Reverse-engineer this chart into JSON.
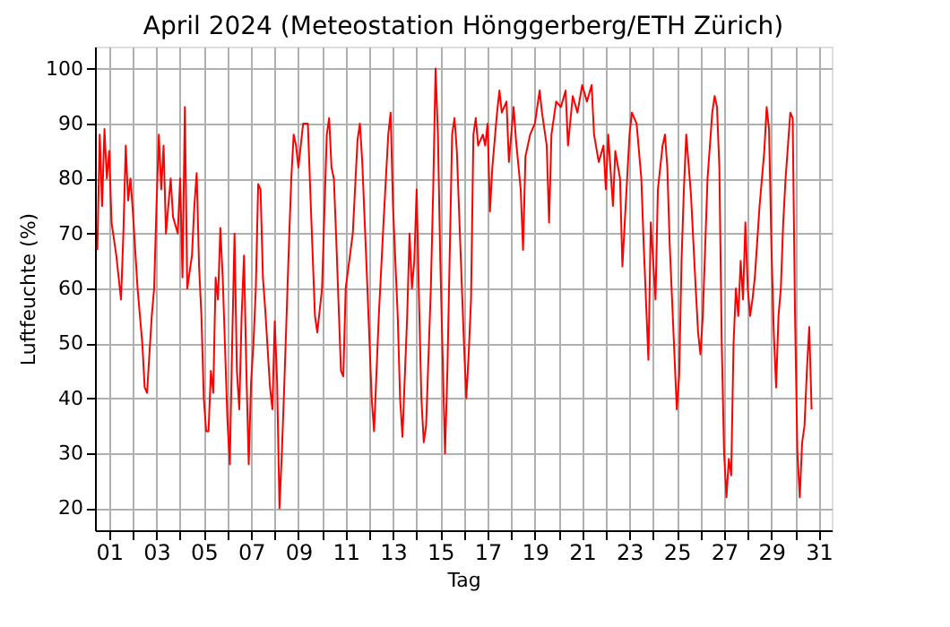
{
  "chart_data": {
    "type": "line",
    "title": "April 2024  (Meteostation Hönggerberg/ETH Zürich)",
    "xlabel": "Tag",
    "ylabel": "Luftfeuchte (%)",
    "xlim": [
      0.4,
      31.55
    ],
    "ylim": [
      16,
      104
    ],
    "xticks": [
      {
        "value": 1,
        "label": "01"
      },
      {
        "value": 2,
        "label": null
      },
      {
        "value": 3,
        "label": "03"
      },
      {
        "value": 4,
        "label": null
      },
      {
        "value": 5,
        "label": "05"
      },
      {
        "value": 6,
        "label": null
      },
      {
        "value": 7,
        "label": "07"
      },
      {
        "value": 8,
        "label": null
      },
      {
        "value": 9,
        "label": "09"
      },
      {
        "value": 10,
        "label": null
      },
      {
        "value": 11,
        "label": "11"
      },
      {
        "value": 12,
        "label": null
      },
      {
        "value": 13,
        "label": "13"
      },
      {
        "value": 14,
        "label": null
      },
      {
        "value": 15,
        "label": "15"
      },
      {
        "value": 16,
        "label": null
      },
      {
        "value": 17,
        "label": "17"
      },
      {
        "value": 18,
        "label": null
      },
      {
        "value": 19,
        "label": "19"
      },
      {
        "value": 20,
        "label": null
      },
      {
        "value": 21,
        "label": "21"
      },
      {
        "value": 22,
        "label": null
      },
      {
        "value": 23,
        "label": "23"
      },
      {
        "value": 24,
        "label": null
      },
      {
        "value": 25,
        "label": "25"
      },
      {
        "value": 26,
        "label": null
      },
      {
        "value": 27,
        "label": "27"
      },
      {
        "value": 28,
        "label": null
      },
      {
        "value": 29,
        "label": "29"
      },
      {
        "value": 30,
        "label": null
      },
      {
        "value": 31,
        "label": "31"
      }
    ],
    "yticks": [
      20,
      30,
      40,
      50,
      60,
      70,
      80,
      90,
      100
    ],
    "grid": true,
    "line_style": "solid",
    "marker": "none",
    "series": [
      {
        "color": "#ff0000",
        "x": [
          0.5,
          0.6,
          0.7,
          0.8,
          0.9,
          1.0,
          1.1,
          1.3,
          1.5,
          1.6,
          1.7,
          1.8,
          1.9,
          2.0,
          2.2,
          2.4,
          2.5,
          2.6,
          2.8,
          2.9,
          3.0,
          3.1,
          3.2,
          3.3,
          3.4,
          3.5,
          3.6,
          3.7,
          3.9,
          4.0,
          4.1,
          4.2,
          4.3,
          4.5,
          4.6,
          4.7,
          4.8,
          4.9,
          5.0,
          5.1,
          5.2,
          5.3,
          5.4,
          5.5,
          5.6,
          5.7,
          5.8,
          6.0,
          6.1,
          6.2,
          6.3,
          6.4,
          6.5,
          6.6,
          6.7,
          6.8,
          6.9,
          7.0,
          7.1,
          7.2,
          7.3,
          7.4,
          7.5,
          7.6,
          7.8,
          7.9,
          8.0,
          8.1,
          8.2,
          8.3,
          8.4,
          8.6,
          8.7,
          8.8,
          8.9,
          9.0,
          9.2,
          9.4,
          9.5,
          9.7,
          9.8,
          10.0,
          10.2,
          10.3,
          10.4,
          10.5,
          10.6,
          10.8,
          10.9,
          11.0,
          11.3,
          11.5,
          11.6,
          11.7,
          11.9,
          12.1,
          12.2,
          12.4,
          12.6,
          12.8,
          12.9,
          13.0,
          13.2,
          13.3,
          13.4,
          13.6,
          13.7,
          13.8,
          13.9,
          14.0,
          14.1,
          14.2,
          14.3,
          14.4,
          14.6,
          14.7,
          14.8,
          14.9,
          15.0,
          15.2,
          15.3,
          15.5,
          15.6,
          15.7,
          16.0,
          16.1,
          16.2,
          16.3,
          16.4,
          16.5,
          16.6,
          16.8,
          16.9,
          17.0,
          17.1,
          17.2,
          17.4,
          17.5,
          17.6,
          17.8,
          17.9,
          18.0,
          18.1,
          18.2,
          18.4,
          18.5,
          18.6,
          18.8,
          19.0,
          19.2,
          19.3,
          19.5,
          19.6,
          19.7,
          19.9,
          20.1,
          20.3,
          20.4,
          20.6,
          20.8,
          21.0,
          21.2,
          21.4,
          21.5,
          21.7,
          21.9,
          22.0,
          22.1,
          22.3,
          22.4,
          22.6,
          22.7,
          22.9,
          23.0,
          23.1,
          23.3,
          23.5,
          23.6,
          23.8,
          23.9,
          24.1,
          24.2,
          24.4,
          24.5,
          24.6,
          24.7,
          24.9,
          25.0,
          25.1,
          25.2,
          25.3,
          25.4,
          25.6,
          25.8,
          25.9,
          26.0,
          26.1,
          26.3,
          26.5,
          26.6,
          26.7,
          26.8,
          26.9,
          27.0,
          27.1,
          27.2,
          27.3,
          27.4,
          27.5,
          27.6,
          27.7,
          27.8,
          27.9,
          28.0,
          28.1,
          28.2,
          28.3,
          28.5,
          28.7,
          28.8,
          28.9,
          29.0,
          29.1,
          29.2,
          29.3,
          29.4,
          29.5,
          29.6,
          29.8,
          29.9,
          30.0,
          30.1,
          30.2,
          30.3,
          30.4,
          30.5,
          30.6,
          30.7
        ],
        "values": [
          67,
          88,
          75,
          89,
          80,
          85,
          72,
          66,
          58,
          70,
          86,
          76,
          80,
          74,
          60,
          50,
          42,
          41,
          55,
          60,
          75,
          88,
          78,
          86,
          70,
          75,
          80,
          73,
          70,
          80,
          62,
          93,
          60,
          66,
          75,
          81,
          64,
          55,
          40,
          34,
          34,
          45,
          41,
          62,
          58,
          71,
          62,
          36,
          28,
          50,
          70,
          45,
          38,
          55,
          66,
          45,
          28,
          43,
          50,
          60,
          79,
          78,
          62,
          56,
          42,
          38,
          54,
          43,
          20,
          30,
          42,
          68,
          80,
          88,
          86,
          82,
          90,
          90,
          78,
          55,
          52,
          60,
          88,
          91,
          82,
          80,
          69,
          45,
          44,
          60,
          70,
          87,
          90,
          83,
          62,
          40,
          34,
          55,
          72,
          88,
          92,
          75,
          55,
          40,
          33,
          55,
          70,
          60,
          65,
          78,
          58,
          40,
          32,
          35,
          60,
          78,
          100,
          88,
          65,
          30,
          45,
          88,
          91,
          85,
          50,
          40,
          48,
          58,
          88,
          91,
          86,
          88,
          86,
          90,
          74,
          82,
          92,
          96,
          92,
          94,
          83,
          88,
          93,
          87,
          78,
          67,
          84,
          88,
          90,
          96,
          92,
          86,
          72,
          88,
          94,
          93,
          96,
          86,
          95,
          92,
          97,
          94,
          97,
          88,
          83,
          86,
          78,
          88,
          75,
          85,
          80,
          64,
          80,
          88,
          92,
          90,
          80,
          68,
          47,
          72,
          58,
          78,
          86,
          88,
          82,
          68,
          48,
          38,
          44,
          65,
          78,
          88,
          77,
          60,
          52,
          48,
          55,
          80,
          92,
          95,
          93,
          82,
          50,
          30,
          22,
          29,
          26,
          50,
          60,
          55,
          65,
          58,
          72,
          60,
          55,
          58,
          62,
          75,
          85,
          93,
          89,
          68,
          52,
          42,
          55,
          60,
          72,
          80,
          92,
          91,
          55,
          30,
          22,
          32,
          35,
          45,
          53,
          38
        ]
      }
    ]
  }
}
